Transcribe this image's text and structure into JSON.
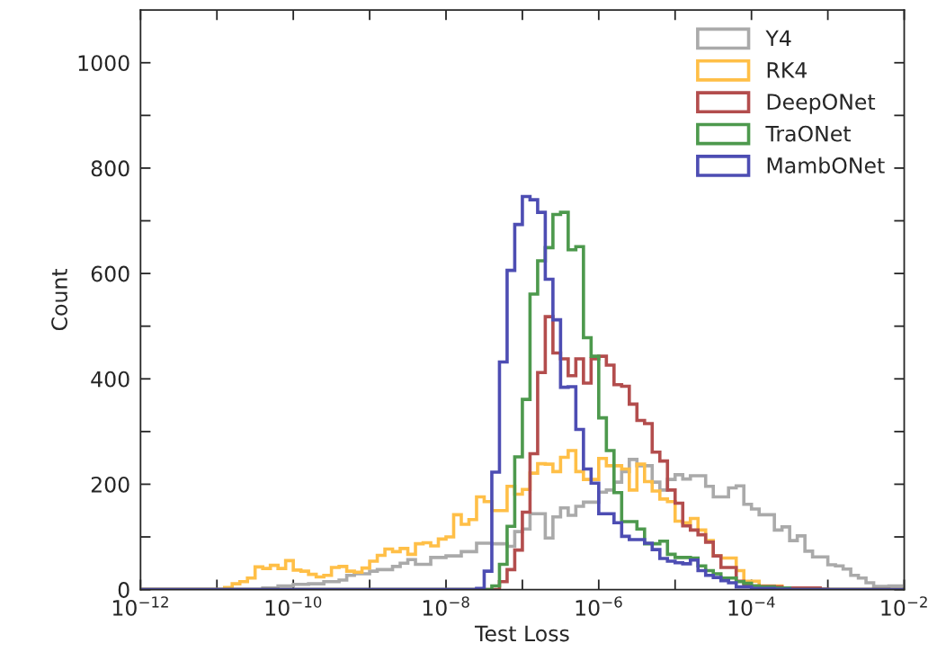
{
  "chart_data": {
    "type": "histogram",
    "xlabel": "Test Loss",
    "ylabel": "Count",
    "log": "x",
    "xlim": [
      1e-12,
      0.01
    ],
    "ylim": [
      0,
      1100
    ],
    "xticks": [
      {
        "value": 1e-12,
        "label": "10$^{−12}$"
      },
      {
        "value": 1e-11,
        "label": null
      },
      {
        "value": 1e-10,
        "label": "10$^{−10}$"
      },
      {
        "value": 1e-09,
        "label": null
      },
      {
        "value": 1e-08,
        "label": "10$^{−8}$"
      },
      {
        "value": 1e-07,
        "label": null
      },
      {
        "value": 1e-06,
        "label": "10$^{−6}$"
      },
      {
        "value": 1e-05,
        "label": null
      },
      {
        "value": 0.0001,
        "label": "10$^{−4}$"
      },
      {
        "value": 0.001,
        "label": null
      },
      {
        "value": 0.01,
        "label": "10$^{−2}$"
      }
    ],
    "yticks": [
      0,
      {
        "value": 100,
        "label": null
      },
      200,
      {
        "value": 300,
        "label": null
      },
      400,
      {
        "value": 500,
        "label": null
      },
      600,
      {
        "value": 700,
        "label": null
      },
      800,
      {
        "value": 900,
        "label": null
      },
      1000
    ],
    "legend": "top right",
    "grid": false,
    "bins": [
      1e-12,
      1.259e-12,
      1.585e-12,
      1.995e-12,
      2.512e-12,
      3.162e-12,
      3.981e-12,
      5.012e-12,
      6.31e-12,
      7.943e-12,
      1e-11,
      1.259e-11,
      1.585e-11,
      1.995e-11,
      2.512e-11,
      3.162e-11,
      3.981e-11,
      5.012e-11,
      6.31e-11,
      7.943e-11,
      1e-10,
      1.259e-10,
      1.585e-10,
      1.995e-10,
      2.512e-10,
      3.162e-10,
      3.981e-10,
      5.012e-10,
      6.31e-10,
      7.943e-10,
      1e-09,
      1.259e-09,
      1.585e-09,
      1.995e-09,
      2.512e-09,
      3.162e-09,
      3.981e-09,
      5.012e-09,
      6.31e-09,
      7.943e-09,
      1e-08,
      1.259e-08,
      1.585e-08,
      1.995e-08,
      2.512e-08,
      3.162e-08,
      3.981e-08,
      5.012e-08,
      6.31e-08,
      7.943e-08,
      1e-07,
      1.259e-07,
      1.585e-07,
      1.995e-07,
      2.512e-07,
      3.162e-07,
      3.981e-07,
      5.012e-07,
      6.31e-07,
      7.943e-07,
      1e-06,
      1.259e-06,
      1.585e-06,
      1.995e-06,
      2.512e-06,
      3.162e-06,
      3.981e-06,
      5.012e-06,
      6.31e-06,
      7.943e-06,
      1e-05,
      1.259e-05,
      1.585e-05,
      1.995e-05,
      2.512e-05,
      3.162e-05,
      3.981e-05,
      5.012e-05,
      6.31e-05,
      7.943e-05,
      0.0001,
      0.0001259,
      0.0001585,
      0.0001995,
      0.0002512,
      0.0003162,
      0.0003981,
      0.0005012,
      0.000631,
      0.0007943,
      0.001,
      0.001259,
      0.001585,
      0.001995,
      0.002512,
      0.003162,
      0.003981,
      0.005012,
      0.00631,
      0.007943,
      0.01
    ],
    "series": [
      {
        "name": "Y4",
        "color": "#aaaaaa",
        "values": [
          0,
          0,
          0,
          0,
          0,
          0,
          0,
          0,
          0,
          0,
          0,
          0,
          0,
          0,
          0,
          0,
          3,
          3,
          7,
          7,
          10,
          10,
          11,
          11,
          15,
          15,
          18,
          27,
          30,
          30,
          35,
          38,
          38,
          44,
          50,
          57,
          48,
          48,
          61,
          61,
          64,
          64,
          72,
          72,
          88,
          88,
          87,
          87,
          82,
          110,
          115,
          144,
          144,
          98,
          138,
          155,
          141,
          158,
          166,
          166,
          185,
          189,
          204,
          224,
          247,
          235,
          235,
          204,
          189,
          209,
          218,
          210,
          216,
          216,
          196,
          176,
          176,
          193,
          197,
          162,
          153,
          142,
          142,
          113,
          119,
          93,
          102,
          73,
          62,
          62,
          47,
          45,
          39,
          27,
          22,
          13,
          6,
          6,
          7,
          7
        ]
      },
      {
        "name": "RK4",
        "color": "#ffbf47",
        "values": [
          0,
          0,
          0,
          0,
          0,
          0,
          0,
          0,
          0,
          0,
          0,
          4,
          11,
          15,
          22,
          43,
          40,
          46,
          40,
          55,
          37,
          35,
          29,
          24,
          27,
          42,
          44,
          35,
          33,
          41,
          54,
          65,
          77,
          72,
          78,
          67,
          87,
          89,
          83,
          96,
          100,
          142,
          124,
          133,
          176,
          167,
          150,
          150,
          196,
          181,
          190,
          221,
          239,
          238,
          224,
          251,
          264,
          224,
          209,
          209,
          249,
          235,
          235,
          229,
          189,
          238,
          205,
          187,
          172,
          167,
          130,
          127,
          135,
          113,
          93,
          64,
          60,
          60,
          36,
          16,
          16,
          7,
          7,
          7,
          3,
          3,
          3,
          2,
          1,
          0,
          0,
          0,
          0,
          0,
          0,
          0,
          0,
          0,
          0,
          0
        ]
      },
      {
        "name": "DeepONet",
        "color": "#b34d4d",
        "values": [
          0,
          0,
          0,
          0,
          0,
          0,
          0,
          0,
          0,
          0,
          0,
          0,
          0,
          0,
          0,
          0,
          0,
          0,
          0,
          0,
          0,
          0,
          0,
          0,
          0,
          0,
          0,
          0,
          0,
          0,
          0,
          0,
          0,
          0,
          0,
          0,
          0,
          0,
          0,
          0,
          0,
          0,
          0,
          0,
          0,
          0,
          0,
          15,
          38,
          75,
          147,
          258,
          412,
          518,
          449,
          438,
          406,
          438,
          392,
          438,
          443,
          426,
          389,
          386,
          352,
          321,
          315,
          261,
          244,
          189,
          164,
          121,
          113,
          104,
          90,
          64,
          42,
          42,
          16,
          7,
          7,
          6,
          6,
          5,
          3,
          3,
          3,
          3,
          3,
          1,
          0,
          0,
          0,
          0,
          0,
          0,
          0,
          0,
          0,
          0
        ]
      },
      {
        "name": "TraONet",
        "color": "#4d994d",
        "values": [
          0,
          0,
          0,
          0,
          0,
          0,
          0,
          0,
          0,
          0,
          0,
          0,
          0,
          0,
          0,
          0,
          0,
          0,
          0,
          0,
          0,
          0,
          0,
          0,
          0,
          0,
          0,
          0,
          0,
          0,
          0,
          0,
          0,
          0,
          0,
          0,
          0,
          0,
          0,
          0,
          0,
          0,
          0,
          0,
          0,
          0,
          7,
          48,
          120,
          252,
          361,
          561,
          624,
          649,
          712,
          716,
          645,
          651,
          478,
          443,
          326,
          264,
          184,
          129,
          129,
          115,
          87,
          87,
          92,
          67,
          61,
          61,
          60,
          45,
          36,
          30,
          22,
          22,
          15,
          12,
          7,
          5,
          5,
          3,
          3,
          0,
          0,
          0,
          0,
          0,
          0,
          0,
          0,
          0,
          0,
          0,
          0,
          0,
          0,
          0
        ]
      },
      {
        "name": "MambONet",
        "color": "#4d4db3",
        "values": [
          0,
          0,
          0,
          0,
          0,
          0,
          0,
          0,
          0,
          0,
          0,
          0,
          0,
          0,
          0,
          0,
          0,
          0,
          0,
          0,
          0,
          0,
          0,
          0,
          0,
          0,
          0,
          0,
          0,
          0,
          0,
          0,
          0,
          0,
          0,
          0,
          0,
          0,
          0,
          0,
          0,
          0,
          0,
          0,
          2,
          35,
          223,
          432,
          606,
          693,
          746,
          740,
          716,
          589,
          512,
          384,
          385,
          304,
          229,
          202,
          144,
          144,
          127,
          101,
          95,
          95,
          88,
          76,
          59,
          54,
          51,
          49,
          56,
          36,
          27,
          23,
          17,
          13,
          5,
          5,
          2,
          2,
          2,
          1,
          1,
          0,
          0,
          0,
          0,
          0,
          0,
          0,
          0,
          0,
          0,
          0,
          0,
          0,
          0,
          0
        ]
      }
    ]
  }
}
